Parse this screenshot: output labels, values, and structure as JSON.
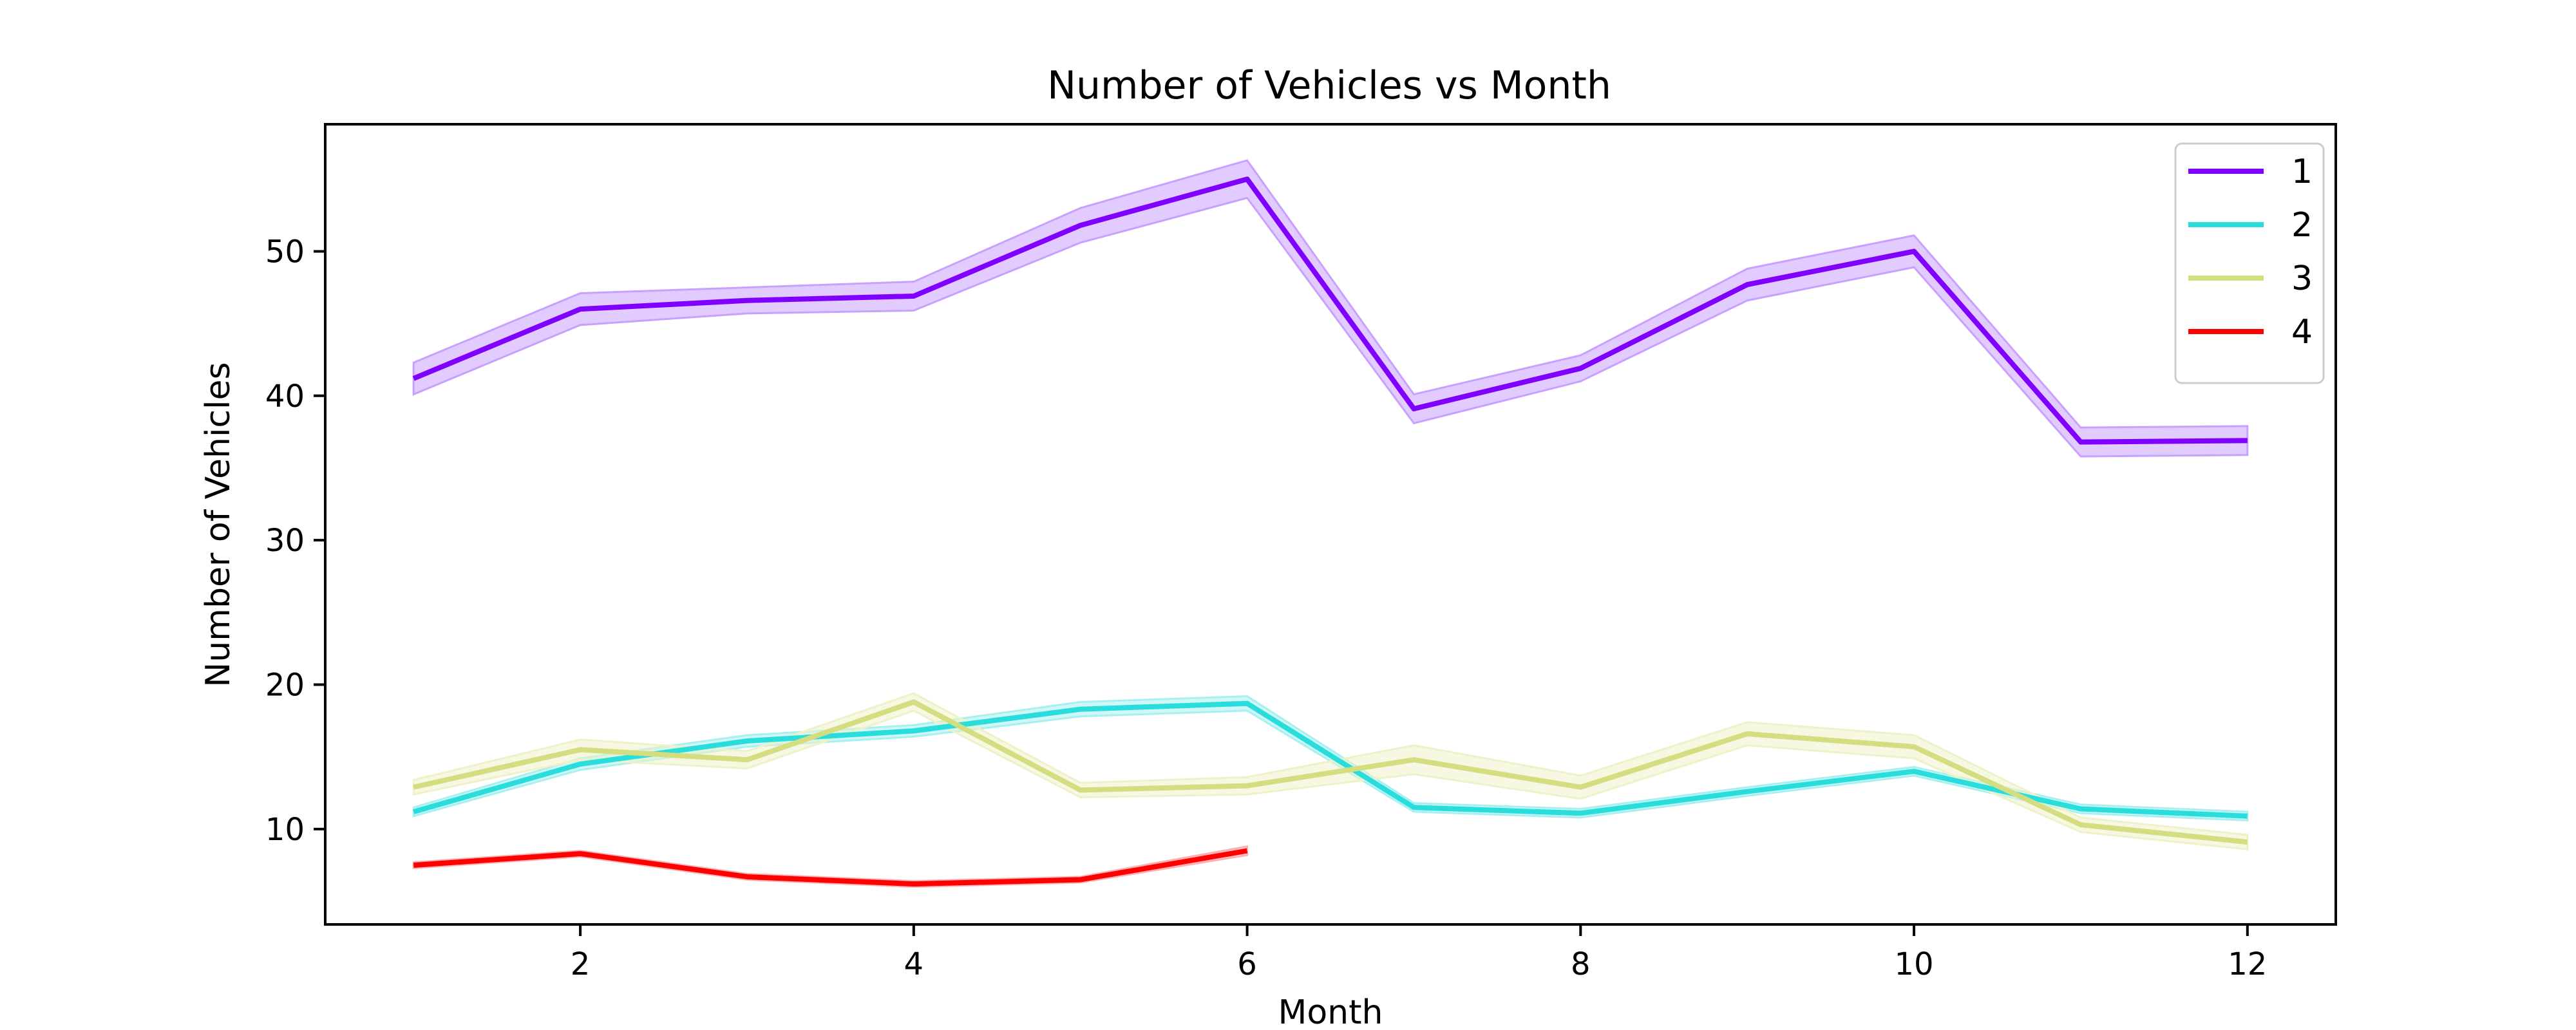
{
  "chart_data": {
    "type": "line",
    "title": "Number of Vehicles vs Month",
    "xlabel": "Month",
    "ylabel": "Number of Vehicles",
    "xlim": [
      0.47,
      12.53
    ],
    "ylim": [
      3.4,
      58.8
    ],
    "xticks": [
      2,
      4,
      6,
      8,
      10,
      12
    ],
    "yticks": [
      10,
      20,
      30,
      40,
      50
    ],
    "grid": false,
    "legend_position": "top-right",
    "series": [
      {
        "name": "1",
        "color": "#8000ff",
        "band_color": "#c9a0ff",
        "x": [
          1,
          2,
          3,
          4,
          5,
          6,
          7,
          8,
          9,
          10,
          11,
          12
        ],
        "y": [
          41.2,
          46.0,
          46.6,
          46.9,
          51.8,
          55.0,
          39.1,
          41.9,
          47.7,
          50.0,
          36.8,
          36.9
        ],
        "ci": [
          1.1,
          1.1,
          0.9,
          1.0,
          1.2,
          1.3,
          1.0,
          0.9,
          1.1,
          1.1,
          1.0,
          1.0
        ]
      },
      {
        "name": "2",
        "color": "#2adddd",
        "band_color": "#a8f0f0",
        "x": [
          1,
          2,
          3,
          4,
          5,
          6,
          7,
          8,
          9,
          10,
          11,
          12
        ],
        "y": [
          11.2,
          14.5,
          16.1,
          16.8,
          18.3,
          18.7,
          11.5,
          11.1,
          12.6,
          14.0,
          11.4,
          10.9
        ],
        "ci": [
          0.3,
          0.4,
          0.4,
          0.4,
          0.5,
          0.5,
          0.3,
          0.3,
          0.3,
          0.3,
          0.3,
          0.3
        ]
      },
      {
        "name": "3",
        "color": "#d4dd80",
        "band_color": "#eef2c8",
        "x": [
          1,
          2,
          3,
          4,
          5,
          6,
          7,
          8,
          9,
          10,
          11,
          12
        ],
        "y": [
          12.9,
          15.5,
          14.8,
          18.8,
          12.7,
          13.0,
          14.8,
          12.9,
          16.6,
          15.7,
          10.3,
          9.1
        ],
        "ci": [
          0.5,
          0.7,
          0.6,
          0.6,
          0.5,
          0.6,
          1.0,
          0.8,
          0.8,
          0.8,
          0.5,
          0.5
        ]
      },
      {
        "name": "4",
        "color": "#ff0000",
        "band_color": "#ffb0b0",
        "x": [
          1,
          2,
          3,
          4,
          5,
          6
        ],
        "y": [
          7.5,
          8.3,
          6.7,
          6.2,
          6.5,
          8.5
        ],
        "ci": [
          0.2,
          0.2,
          0.2,
          0.2,
          0.2,
          0.3
        ]
      }
    ]
  }
}
